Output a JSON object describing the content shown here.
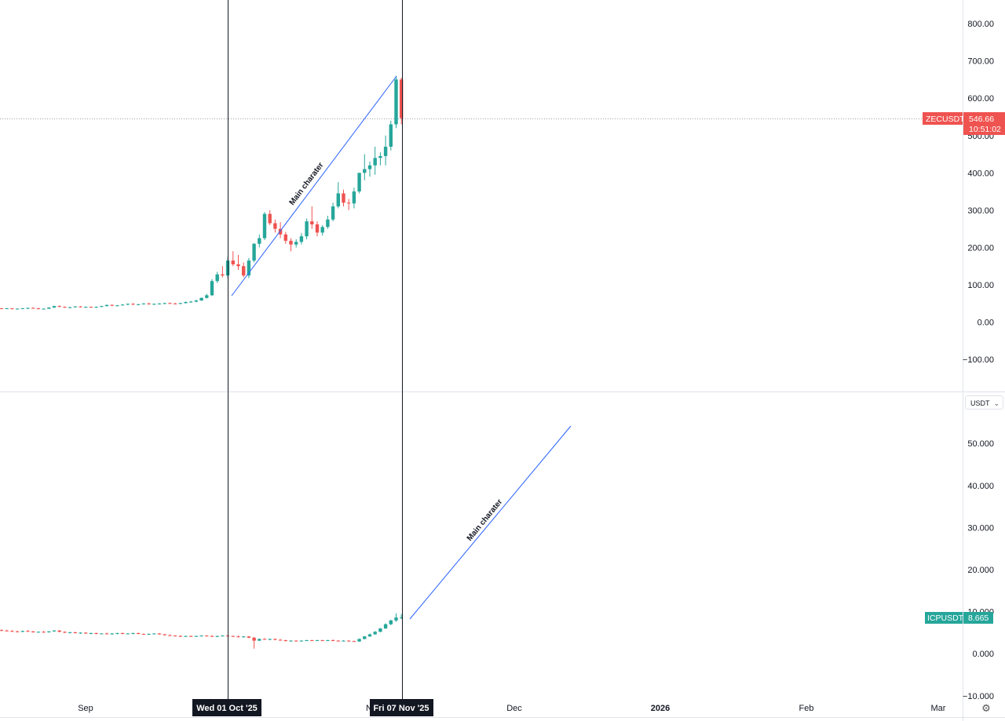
{
  "chart_data": [
    {
      "type": "candlestick",
      "symbol": "ZECUSDT",
      "ylim": [
        -150,
        850
      ],
      "yticks": [
        "800.00",
        "700.00",
        "600.00",
        "500.00",
        "400.00",
        "300.00",
        "200.00",
        "100.00",
        "0.00",
        "−100.00"
      ],
      "last_price": "546.66",
      "countdown": "10:51:02",
      "annotation": "Main charater",
      "up_color": "#26a69a",
      "down_color": "#ef5350",
      "candles": [
        [
          37,
          38,
          35,
          36
        ],
        [
          36,
          38,
          35,
          37
        ],
        [
          37,
          37,
          34,
          35
        ],
        [
          35,
          37,
          34,
          36
        ],
        [
          36,
          38,
          35,
          37
        ],
        [
          37,
          39,
          35,
          38
        ],
        [
          38,
          40,
          36,
          37
        ],
        [
          37,
          38,
          34,
          35
        ],
        [
          35,
          37,
          34,
          36
        ],
        [
          36,
          40,
          35,
          39
        ],
        [
          39,
          44,
          38,
          43
        ],
        [
          43,
          45,
          40,
          41
        ],
        [
          41,
          42,
          38,
          39
        ],
        [
          39,
          41,
          37,
          40
        ],
        [
          40,
          43,
          39,
          42
        ],
        [
          42,
          43,
          39,
          40
        ],
        [
          40,
          42,
          38,
          41
        ],
        [
          41,
          42,
          39,
          40
        ],
        [
          40,
          42,
          38,
          41
        ],
        [
          41,
          44,
          40,
          43
        ],
        [
          43,
          47,
          42,
          46
        ],
        [
          46,
          48,
          43,
          44
        ],
        [
          44,
          46,
          42,
          45
        ],
        [
          45,
          48,
          44,
          47
        ],
        [
          47,
          50,
          45,
          49
        ],
        [
          49,
          51,
          46,
          47
        ],
        [
          47,
          49,
          45,
          48
        ],
        [
          48,
          51,
          47,
          50
        ],
        [
          50,
          52,
          47,
          48
        ],
        [
          48,
          50,
          46,
          49
        ],
        [
          49,
          51,
          47,
          50
        ],
        [
          50,
          52,
          48,
          51
        ],
        [
          51,
          53,
          49,
          50
        ],
        [
          50,
          52,
          48,
          49
        ],
        [
          49,
          52,
          48,
          51
        ],
        [
          51,
          55,
          50,
          54
        ],
        [
          54,
          57,
          52,
          55
        ],
        [
          55,
          60,
          53,
          58
        ],
        [
          58,
          66,
          57,
          65
        ],
        [
          65,
          76,
          63,
          72
        ],
        [
          72,
          115,
          70,
          110
        ],
        [
          110,
          135,
          105,
          128
        ],
        [
          128,
          150,
          120,
          125
        ],
        [
          125,
          175,
          118,
          165
        ],
        [
          165,
          190,
          150,
          155
        ],
        [
          155,
          180,
          140,
          150
        ],
        [
          150,
          160,
          120,
          125
        ],
        [
          125,
          172,
          118,
          165
        ],
        [
          165,
          212,
          160,
          210
        ],
        [
          210,
          235,
          200,
          225
        ],
        [
          225,
          295,
          220,
          290
        ],
        [
          290,
          300,
          260,
          265
        ],
        [
          265,
          275,
          240,
          250
        ],
        [
          250,
          268,
          225,
          235
        ],
        [
          235,
          242,
          210,
          218
        ],
        [
          218,
          225,
          190,
          208
        ],
        [
          208,
          222,
          200,
          215
        ],
        [
          215,
          238,
          208,
          230
        ],
        [
          230,
          278,
          222,
          270
        ],
        [
          270,
          310,
          250,
          262
        ],
        [
          262,
          270,
          230,
          240
        ],
        [
          240,
          260,
          232,
          255
        ],
        [
          255,
          285,
          250,
          275
        ],
        [
          275,
          320,
          270,
          310
        ],
        [
          310,
          375,
          305,
          345
        ],
        [
          345,
          355,
          310,
          320
        ],
        [
          320,
          330,
          300,
          318
        ],
        [
          318,
          360,
          305,
          350
        ],
        [
          350,
          400,
          345,
          400
        ],
        [
          400,
          450,
          380,
          410
        ],
        [
          410,
          430,
          390,
          420
        ],
        [
          420,
          470,
          395,
          440
        ],
        [
          440,
          455,
          420,
          445
        ],
        [
          445,
          500,
          420,
          470
        ],
        [
          470,
          540,
          460,
          530
        ],
        [
          530,
          660,
          520,
          650
        ],
        [
          650,
          655,
          530,
          546.66
        ]
      ]
    },
    {
      "type": "candlestick",
      "symbol": "ICPUSDT",
      "ylim": [
        -10,
        59
      ],
      "yticks": [
        "50.000",
        "40.000",
        "30.000",
        "20.000",
        "10.000",
        "0.000",
        "−10.000"
      ],
      "last_price": "8.665",
      "annotation": "Main charater",
      "currency": "USDT",
      "candles": [
        [
          5.6,
          5.8,
          5.4,
          5.5
        ],
        [
          5.5,
          5.7,
          5.3,
          5.4
        ],
        [
          5.4,
          5.6,
          5.2,
          5.3
        ],
        [
          5.3,
          5.5,
          5.1,
          5.2
        ],
        [
          5.2,
          5.5,
          5.1,
          5.4
        ],
        [
          5.4,
          5.6,
          5.2,
          5.3
        ],
        [
          5.3,
          5.4,
          5.0,
          5.1
        ],
        [
          5.1,
          5.3,
          5.0,
          5.2
        ],
        [
          5.2,
          5.4,
          5.0,
          5.1
        ],
        [
          5.1,
          5.4,
          5.0,
          5.3
        ],
        [
          5.3,
          5.6,
          5.2,
          5.5
        ],
        [
          5.5,
          5.6,
          5.1,
          5.2
        ],
        [
          5.2,
          5.3,
          4.9,
          5.0
        ],
        [
          5.0,
          5.2,
          4.8,
          5.1
        ],
        [
          5.1,
          5.2,
          4.8,
          4.9
        ],
        [
          4.9,
          5.1,
          4.7,
          5.0
        ],
        [
          5.0,
          5.1,
          4.7,
          4.8
        ],
        [
          4.8,
          5.0,
          4.6,
          4.9
        ],
        [
          4.9,
          5.0,
          4.6,
          4.7
        ],
        [
          4.7,
          4.9,
          4.6,
          4.8
        ],
        [
          4.8,
          5.0,
          4.6,
          4.7
        ],
        [
          4.7,
          4.9,
          4.5,
          4.8
        ],
        [
          4.8,
          5.0,
          4.6,
          4.9
        ],
        [
          4.9,
          5.0,
          4.6,
          4.7
        ],
        [
          4.7,
          4.9,
          4.6,
          4.8
        ],
        [
          4.8,
          5.0,
          4.6,
          4.9
        ],
        [
          4.9,
          5.0,
          4.6,
          4.7
        ],
        [
          4.7,
          4.8,
          4.5,
          4.6
        ],
        [
          4.6,
          4.8,
          4.5,
          4.7
        ],
        [
          4.7,
          4.9,
          4.6,
          4.8
        ],
        [
          4.8,
          4.9,
          4.5,
          4.6
        ],
        [
          4.6,
          4.7,
          4.3,
          4.4
        ],
        [
          4.4,
          4.6,
          4.2,
          4.3
        ],
        [
          4.3,
          4.4,
          4.1,
          4.2
        ],
        [
          4.2,
          4.4,
          4.0,
          4.1
        ],
        [
          4.1,
          4.3,
          4.0,
          4.2
        ],
        [
          4.2,
          4.3,
          4.0,
          4.1
        ],
        [
          4.1,
          4.3,
          4.0,
          4.2
        ],
        [
          4.2,
          4.4,
          4.1,
          4.3
        ],
        [
          4.3,
          4.4,
          4.1,
          4.2
        ],
        [
          4.2,
          4.4,
          4.0,
          4.1
        ],
        [
          4.1,
          4.3,
          3.9,
          4.2
        ],
        [
          4.2,
          4.4,
          4.1,
          4.3
        ],
        [
          4.3,
          4.4,
          4.1,
          4.2
        ],
        [
          4.2,
          4.3,
          4.0,
          4.1
        ],
        [
          4.1,
          4.3,
          3.9,
          4.0
        ],
        [
          4.0,
          4.2,
          3.8,
          4.1
        ],
        [
          4.1,
          4.2,
          3.7,
          3.8
        ],
        [
          3.8,
          4.0,
          1.2,
          3.1
        ],
        [
          3.1,
          3.6,
          3.0,
          3.5
        ],
        [
          3.5,
          3.7,
          3.3,
          3.4
        ],
        [
          3.4,
          3.6,
          3.2,
          3.5
        ],
        [
          3.5,
          3.6,
          3.2,
          3.3
        ],
        [
          3.3,
          3.5,
          3.1,
          3.2
        ],
        [
          3.2,
          3.3,
          2.9,
          3.0
        ],
        [
          3.0,
          3.2,
          2.9,
          3.1
        ],
        [
          3.1,
          3.2,
          2.9,
          3.0
        ],
        [
          3.0,
          3.2,
          2.9,
          3.1
        ],
        [
          3.1,
          3.3,
          3.0,
          3.2
        ],
        [
          3.2,
          3.3,
          3.0,
          3.1
        ],
        [
          3.1,
          3.3,
          3.0,
          3.2
        ],
        [
          3.2,
          3.3,
          3.0,
          3.1
        ],
        [
          3.1,
          3.3,
          3.0,
          3.2
        ],
        [
          3.2,
          3.4,
          3.0,
          3.1
        ],
        [
          3.1,
          3.2,
          2.9,
          3.0
        ],
        [
          3.0,
          3.2,
          2.9,
          3.1
        ],
        [
          3.1,
          3.2,
          2.9,
          3.0
        ],
        [
          3.0,
          3.1,
          2.8,
          2.9
        ],
        [
          2.9,
          3.6,
          2.8,
          3.5
        ],
        [
          3.5,
          4.2,
          3.4,
          4.1
        ],
        [
          4.1,
          4.8,
          4.0,
          4.6
        ],
        [
          4.6,
          5.4,
          4.5,
          5.2
        ],
        [
          5.2,
          6.1,
          5.1,
          6.0
        ],
        [
          6.0,
          7.2,
          5.9,
          7.0
        ],
        [
          7.0,
          8.1,
          6.8,
          7.9
        ],
        [
          7.9,
          9.6,
          7.6,
          8.6
        ],
        [
          8.6,
          9.4,
          8.2,
          8.665
        ]
      ]
    }
  ],
  "time_axis": {
    "labels": [
      "Sep",
      "Dec",
      "Feb",
      "Mar"
    ],
    "year_label": "2026",
    "partial_label": "N",
    "markers": [
      "Wed 01 Oct '25",
      "Fri 07 Nov '25"
    ]
  },
  "icons": {
    "settings": "gear-icon",
    "currency_dropdown": "chevron-down-icon"
  }
}
